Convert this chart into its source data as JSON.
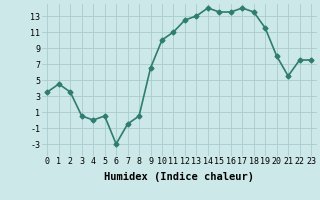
{
  "x": [
    0,
    1,
    2,
    3,
    4,
    5,
    6,
    7,
    8,
    9,
    10,
    11,
    12,
    13,
    14,
    15,
    16,
    17,
    18,
    19,
    20,
    21,
    22,
    23
  ],
  "y": [
    3.5,
    4.5,
    3.5,
    0.5,
    0.0,
    0.5,
    -3.0,
    -0.5,
    0.5,
    6.5,
    10.0,
    11.0,
    12.5,
    13.0,
    14.0,
    13.5,
    13.5,
    14.0,
    13.5,
    11.5,
    8.0,
    5.5,
    7.5,
    7.5
  ],
  "line_color": "#2e7d6e",
  "marker": "D",
  "marker_size": 2.5,
  "bg_color": "#cce8e8",
  "grid_color": "#aacccc",
  "xlabel": "Humidex (Indice chaleur)",
  "xlim": [
    -0.5,
    23.5
  ],
  "ylim": [
    -4.5,
    14.5
  ],
  "yticks": [
    -3,
    -1,
    1,
    3,
    5,
    7,
    9,
    11,
    13
  ],
  "xticks": [
    0,
    1,
    2,
    3,
    4,
    5,
    6,
    7,
    8,
    9,
    10,
    11,
    12,
    13,
    14,
    15,
    16,
    17,
    18,
    19,
    20,
    21,
    22,
    23
  ],
  "tick_fontsize": 6,
  "xlabel_fontsize": 7.5,
  "linewidth": 1.2
}
